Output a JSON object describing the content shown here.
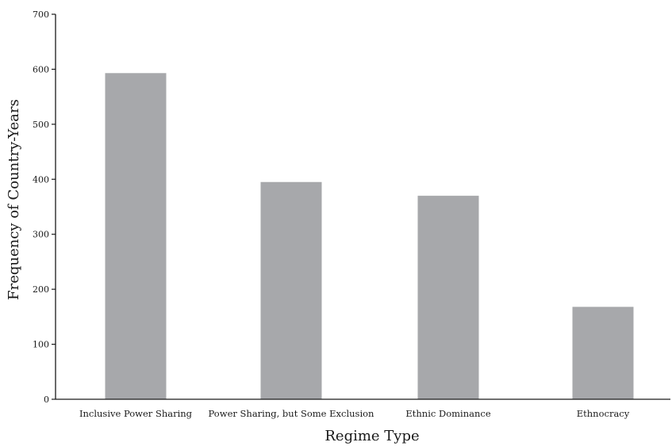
{
  "chart_data": {
    "type": "bar",
    "categories": [
      "Inclusive Power Sharing",
      "Power Sharing, but Some Exclusion",
      "Ethnic Dominance",
      "Ethnocracy"
    ],
    "values": [
      593,
      395,
      370,
      168
    ],
    "title": "",
    "xlabel": "Regime Type",
    "ylabel": "Frequency of Country-Years",
    "ylim": [
      0,
      700
    ],
    "yticks": [
      0,
      100,
      200,
      300,
      400,
      500,
      600,
      700
    ],
    "grid": false,
    "legend": "none",
    "bar_color": "#a7a8ab",
    "axis_color": "#1a1a1a"
  }
}
